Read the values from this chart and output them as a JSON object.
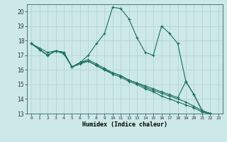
{
  "title": "",
  "xlabel": "Humidex (Indice chaleur)",
  "bg_color": "#cce8e8",
  "grid_color": "#b0d0d0",
  "line_color": "#1a6e60",
  "xlim": [
    -0.5,
    23.5
  ],
  "ylim": [
    13,
    20.5
  ],
  "yticks": [
    13,
    14,
    15,
    16,
    17,
    18,
    19,
    20
  ],
  "xticks": [
    0,
    1,
    2,
    3,
    4,
    5,
    6,
    7,
    8,
    9,
    10,
    11,
    12,
    13,
    14,
    15,
    16,
    17,
    18,
    19,
    20,
    21,
    22,
    23
  ],
  "series1_x": [
    0,
    1,
    2,
    3,
    4,
    5,
    6,
    7,
    8,
    9,
    10,
    11,
    12,
    13,
    14,
    15,
    16,
    17,
    18,
    19,
    20,
    21,
    22,
    23
  ],
  "series1_y": [
    17.8,
    17.4,
    17.0,
    17.3,
    17.2,
    16.2,
    16.5,
    17.0,
    17.8,
    18.5,
    20.3,
    20.2,
    19.5,
    18.2,
    17.2,
    17.0,
    19.0,
    18.5,
    17.8,
    15.2,
    14.3,
    13.2,
    13.0,
    12.8
  ],
  "series2_x": [
    0,
    1,
    2,
    3,
    4,
    5,
    6,
    7,
    8,
    9,
    10,
    11,
    12,
    13,
    14,
    15,
    16,
    17,
    18,
    19,
    20,
    21,
    22,
    23
  ],
  "series2_y": [
    17.8,
    17.4,
    17.0,
    17.3,
    17.2,
    16.2,
    16.5,
    16.7,
    16.4,
    16.1,
    15.8,
    15.6,
    15.3,
    15.1,
    14.8,
    14.6,
    14.4,
    14.2,
    14.0,
    13.8,
    13.5,
    13.2,
    13.0,
    12.8
  ],
  "series3_x": [
    0,
    1,
    2,
    3,
    4,
    5,
    6,
    7,
    8,
    9,
    10,
    11,
    12,
    13,
    14,
    15,
    16,
    17,
    18,
    19,
    20,
    21,
    22,
    23
  ],
  "series3_y": [
    17.8,
    17.4,
    17.0,
    17.3,
    17.2,
    16.2,
    16.5,
    16.6,
    16.3,
    16.0,
    15.7,
    15.5,
    15.2,
    15.0,
    14.7,
    14.5,
    14.2,
    14.0,
    13.8,
    13.6,
    13.4,
    13.1,
    13.0,
    12.8
  ],
  "series4_x": [
    0,
    1,
    2,
    3,
    4,
    5,
    6,
    7,
    8,
    9,
    10,
    11,
    12,
    13,
    14,
    15,
    16,
    17,
    18,
    19,
    20,
    21,
    22,
    23
  ],
  "series4_y": [
    17.8,
    17.5,
    17.2,
    17.3,
    17.1,
    16.2,
    16.4,
    16.6,
    16.3,
    16.0,
    15.8,
    15.6,
    15.3,
    15.1,
    14.9,
    14.7,
    14.5,
    14.3,
    14.1,
    15.2,
    14.3,
    13.2,
    13.0,
    12.8
  ]
}
